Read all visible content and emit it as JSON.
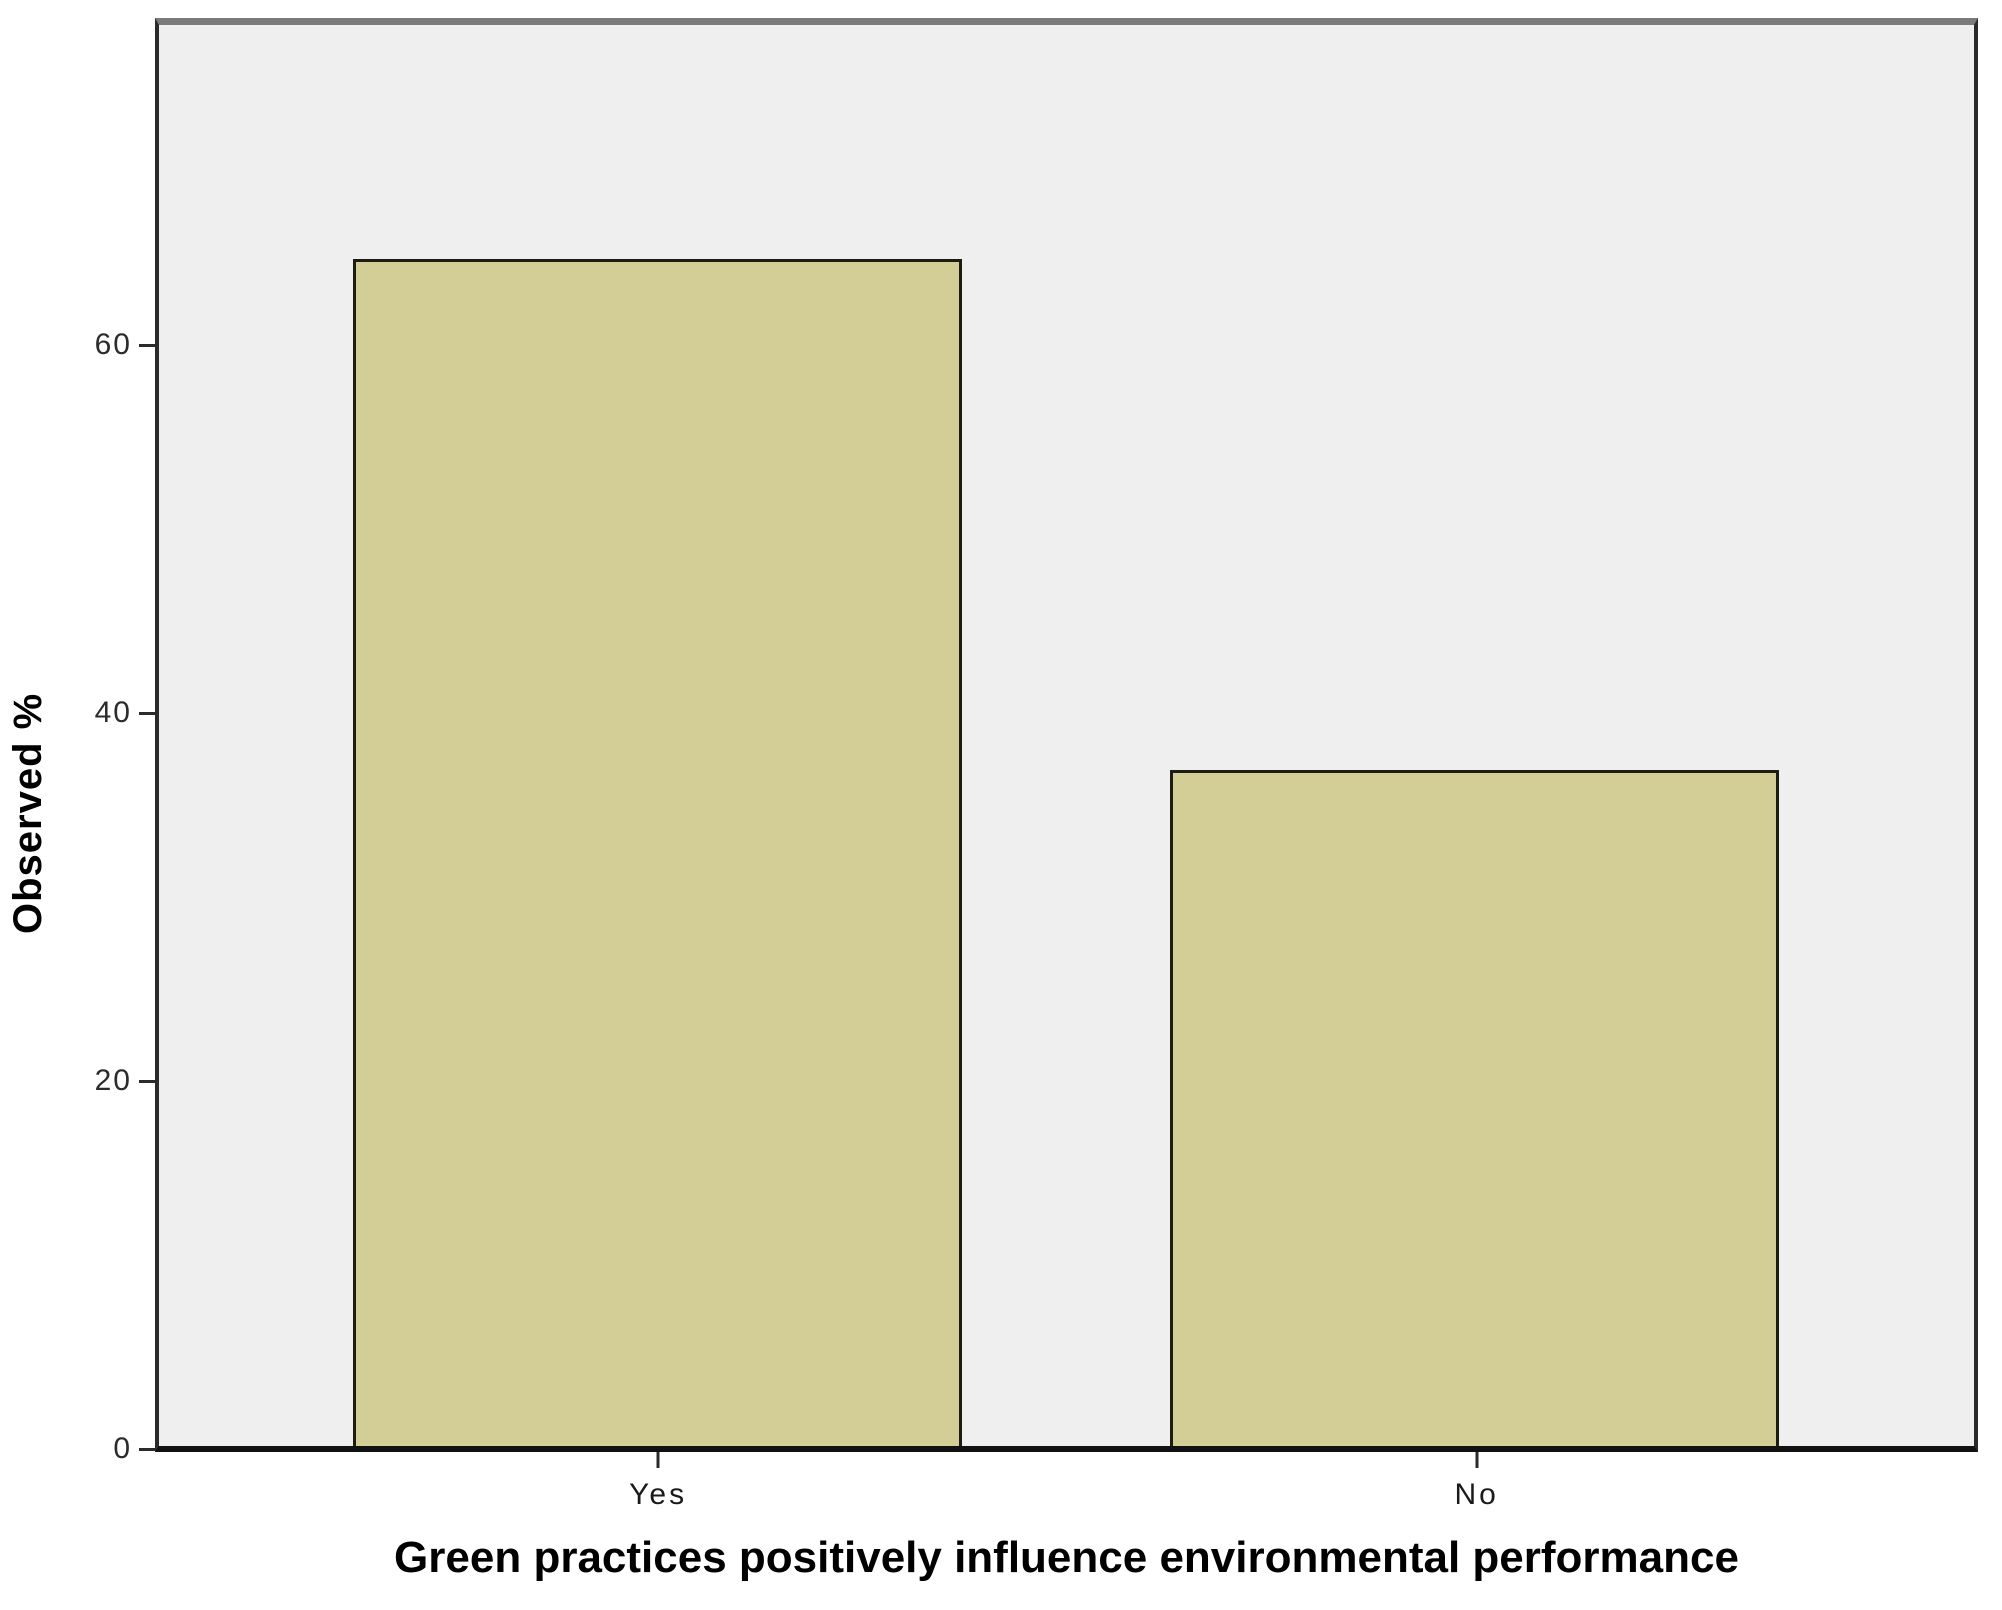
{
  "chart_data": {
    "type": "bar",
    "title": "",
    "categories": [
      "Yes",
      "No"
    ],
    "values": [
      65,
      37
    ],
    "xlabel": "Green practices positively influence environmental performance",
    "ylabel": "Observed %",
    "ylim": [
      0,
      77.8
    ],
    "yticks": [
      0,
      20,
      40,
      60
    ],
    "grid": false,
    "legend": "none",
    "colors": {
      "bar_fill": "#d3ce96",
      "bar_border": "#1c1c12",
      "plot_background": "#efefef",
      "frame_top": "#7b7b7b",
      "frame_side": "#2a2a2a",
      "axis_line": "#111111",
      "tick_color": "#2b2b2b"
    }
  }
}
